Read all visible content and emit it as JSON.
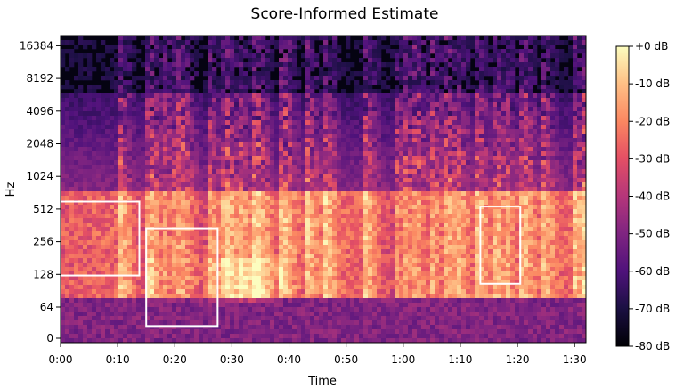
{
  "chart_data": {
    "type": "heatmap",
    "title": "Score-Informed Estimate",
    "xlabel": "Time",
    "ylabel": "Hz",
    "x_range_seconds": [
      0,
      92
    ],
    "x_ticks": [
      {
        "value": 0,
        "label": "0:00"
      },
      {
        "value": 10,
        "label": "0:10"
      },
      {
        "value": 20,
        "label": "0:20"
      },
      {
        "value": 30,
        "label": "0:30"
      },
      {
        "value": 40,
        "label": "0:40"
      },
      {
        "value": 50,
        "label": "0:50"
      },
      {
        "value": 60,
        "label": "1:00"
      },
      {
        "value": 70,
        "label": "1:10"
      },
      {
        "value": 80,
        "label": "1:20"
      },
      {
        "value": 90,
        "label": "1:30"
      }
    ],
    "y_scale": "log",
    "y_ticks": [
      {
        "value": 0,
        "label": "0"
      },
      {
        "value": 64,
        "label": "64"
      },
      {
        "value": 128,
        "label": "128"
      },
      {
        "value": 256,
        "label": "256"
      },
      {
        "value": 512,
        "label": "512"
      },
      {
        "value": 1024,
        "label": "1024"
      },
      {
        "value": 2048,
        "label": "2048"
      },
      {
        "value": 4096,
        "label": "4096"
      },
      {
        "value": 8192,
        "label": "8192"
      },
      {
        "value": 16384,
        "label": "16384"
      }
    ],
    "colorbar": {
      "colormap": "magma",
      "range_db": [
        -80,
        0
      ],
      "ticks": [
        "+0 dB",
        "-10 dB",
        "-20 dB",
        "-30 dB",
        "-40 dB",
        "-50 dB",
        "-60 dB",
        "-70 dB",
        "-80 dB"
      ]
    },
    "highlight_boxes": [
      {
        "t0": 0,
        "t1": 13.8,
        "f0": 125,
        "f1": 600
      },
      {
        "t0": 15,
        "t1": 27.5,
        "f0": 25,
        "f1": 340
      },
      {
        "t0": 73.5,
        "t1": 80.5,
        "f0": 105,
        "f1": 540
      }
    ]
  }
}
